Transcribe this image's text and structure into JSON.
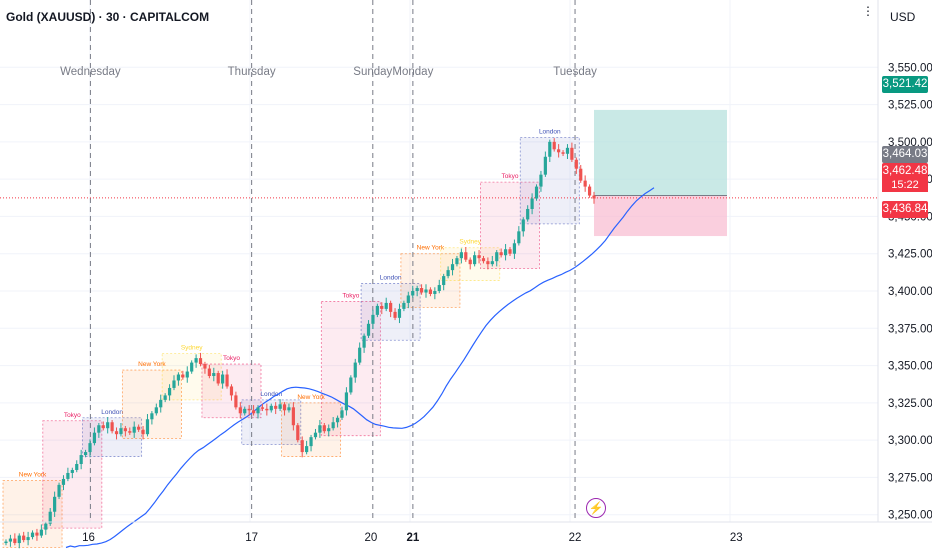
{
  "header": {
    "title_bold": "Gold (XAUUSD) · 30 · CAPITALCOM",
    "currency": "USD",
    "more_icon": "ellipsis-vertical-icon"
  },
  "colors": {
    "up": "#26a69a",
    "down": "#ef5350",
    "ma": "#2962ff",
    "tp_zone": "#b2dfdb",
    "sl_zone": "#f8bbd0",
    "tokyo": "#e91e63",
    "london": "#3f51b5",
    "newyork": "#ff6d00",
    "sydney": "#fdd835"
  },
  "price_tags": {
    "target": "3,521.42",
    "last": "3,464.03",
    "current": "3,462.48",
    "countdown": "15:22",
    "stop": "3,436.84",
    "hidden_behind": "3,525.00"
  },
  "chart_data": {
    "type": "candlestick",
    "symbol": "Gold (XAUUSD)",
    "timeframe": "30",
    "ylim": [
      3225,
      3575
    ],
    "y_ticks": [
      3250,
      3275,
      3300,
      3325,
      3350,
      3375,
      3400,
      3425,
      3450,
      3475,
      3500,
      3525,
      3550
    ],
    "y_tick_labels": [
      "3,250.00",
      "3,275.00",
      "3,300.00",
      "3,325.00",
      "3,350.00",
      "3,375.00",
      "3,400.00",
      "3,425.00",
      "3,450.00",
      "3,475.00",
      "3,500.00",
      "3,525.00",
      "3,550.00"
    ],
    "x_ticks": [
      {
        "label": "16",
        "bold": false,
        "t": 0.095
      },
      {
        "label": "17",
        "bold": false,
        "t": 0.27
      },
      {
        "label": "20",
        "bold": false,
        "t": 0.398
      },
      {
        "label": "21",
        "bold": true,
        "t": 0.443
      },
      {
        "label": "22",
        "bold": false,
        "t": 0.617
      },
      {
        "label": "23",
        "bold": false,
        "t": 0.79
      }
    ],
    "day_labels": [
      {
        "label": "Wednesday",
        "t": 0.097
      },
      {
        "label": "Thursday",
        "t": 0.27
      },
      {
        "label": "Sunday",
        "t": 0.4
      },
      {
        "label": "Monday",
        "t": 0.443
      },
      {
        "label": "Tuesday",
        "t": 0.617
      }
    ],
    "close_path": [
      3232,
      3234,
      3231,
      3236,
      3233,
      3235,
      3238,
      3236,
      3240,
      3244,
      3252,
      3262,
      3270,
      3274,
      3278,
      3280,
      3284,
      3290,
      3292,
      3298,
      3305,
      3310,
      3308,
      3312,
      3306,
      3304,
      3308,
      3306,
      3305,
      3309,
      3307,
      3304,
      3314,
      3318,
      3322,
      3327,
      3330,
      3335,
      3340,
      3344,
      3342,
      3346,
      3352,
      3355,
      3351,
      3348,
      3343,
      3345,
      3338,
      3344,
      3336,
      3330,
      3322,
      3318,
      3321,
      3320,
      3318,
      3322,
      3321,
      3320,
      3323,
      3321,
      3324,
      3320,
      3322,
      3310,
      3300,
      3292,
      3296,
      3302,
      3305,
      3310,
      3306,
      3308,
      3312,
      3315,
      3320,
      3332,
      3342,
      3352,
      3362,
      3370,
      3378,
      3384,
      3390,
      3388,
      3392,
      3386,
      3382,
      3388,
      3392,
      3397,
      3400,
      3402,
      3399,
      3401,
      3398,
      3400,
      3404,
      3410,
      3414,
      3418,
      3422,
      3426,
      3421,
      3418,
      3424,
      3422,
      3420,
      3418,
      3420,
      3426,
      3424,
      3428,
      3425,
      3432,
      3440,
      3448,
      3455,
      3462,
      3470,
      3478,
      3490,
      3500,
      3495,
      3493,
      3492,
      3496,
      3488,
      3482,
      3474,
      3470,
      3464,
      3462
    ],
    "moving_average": true,
    "position": {
      "entry": 3464.03,
      "target": 3521.42,
      "stop": 3436.84
    },
    "sessions": [
      {
        "label": "New York",
        "type": "newyork"
      },
      {
        "label": "Tokyo",
        "type": "tokyo"
      },
      {
        "label": "London",
        "type": "london"
      },
      {
        "label": "New York",
        "type": "newyork"
      },
      {
        "label": "Sydney",
        "type": "sydney"
      },
      {
        "label": "Tokyo",
        "type": "tokyo"
      },
      {
        "label": "London",
        "type": "london"
      },
      {
        "label": "New York",
        "type": "newyork"
      },
      {
        "label": "Tokyo",
        "type": "tokyo"
      },
      {
        "label": "London",
        "type": "london"
      },
      {
        "label": "New York",
        "type": "newyork"
      },
      {
        "label": "Sydney",
        "type": "sydney"
      },
      {
        "label": "Tokyo",
        "type": "tokyo"
      },
      {
        "label": "London",
        "type": "london"
      }
    ]
  }
}
